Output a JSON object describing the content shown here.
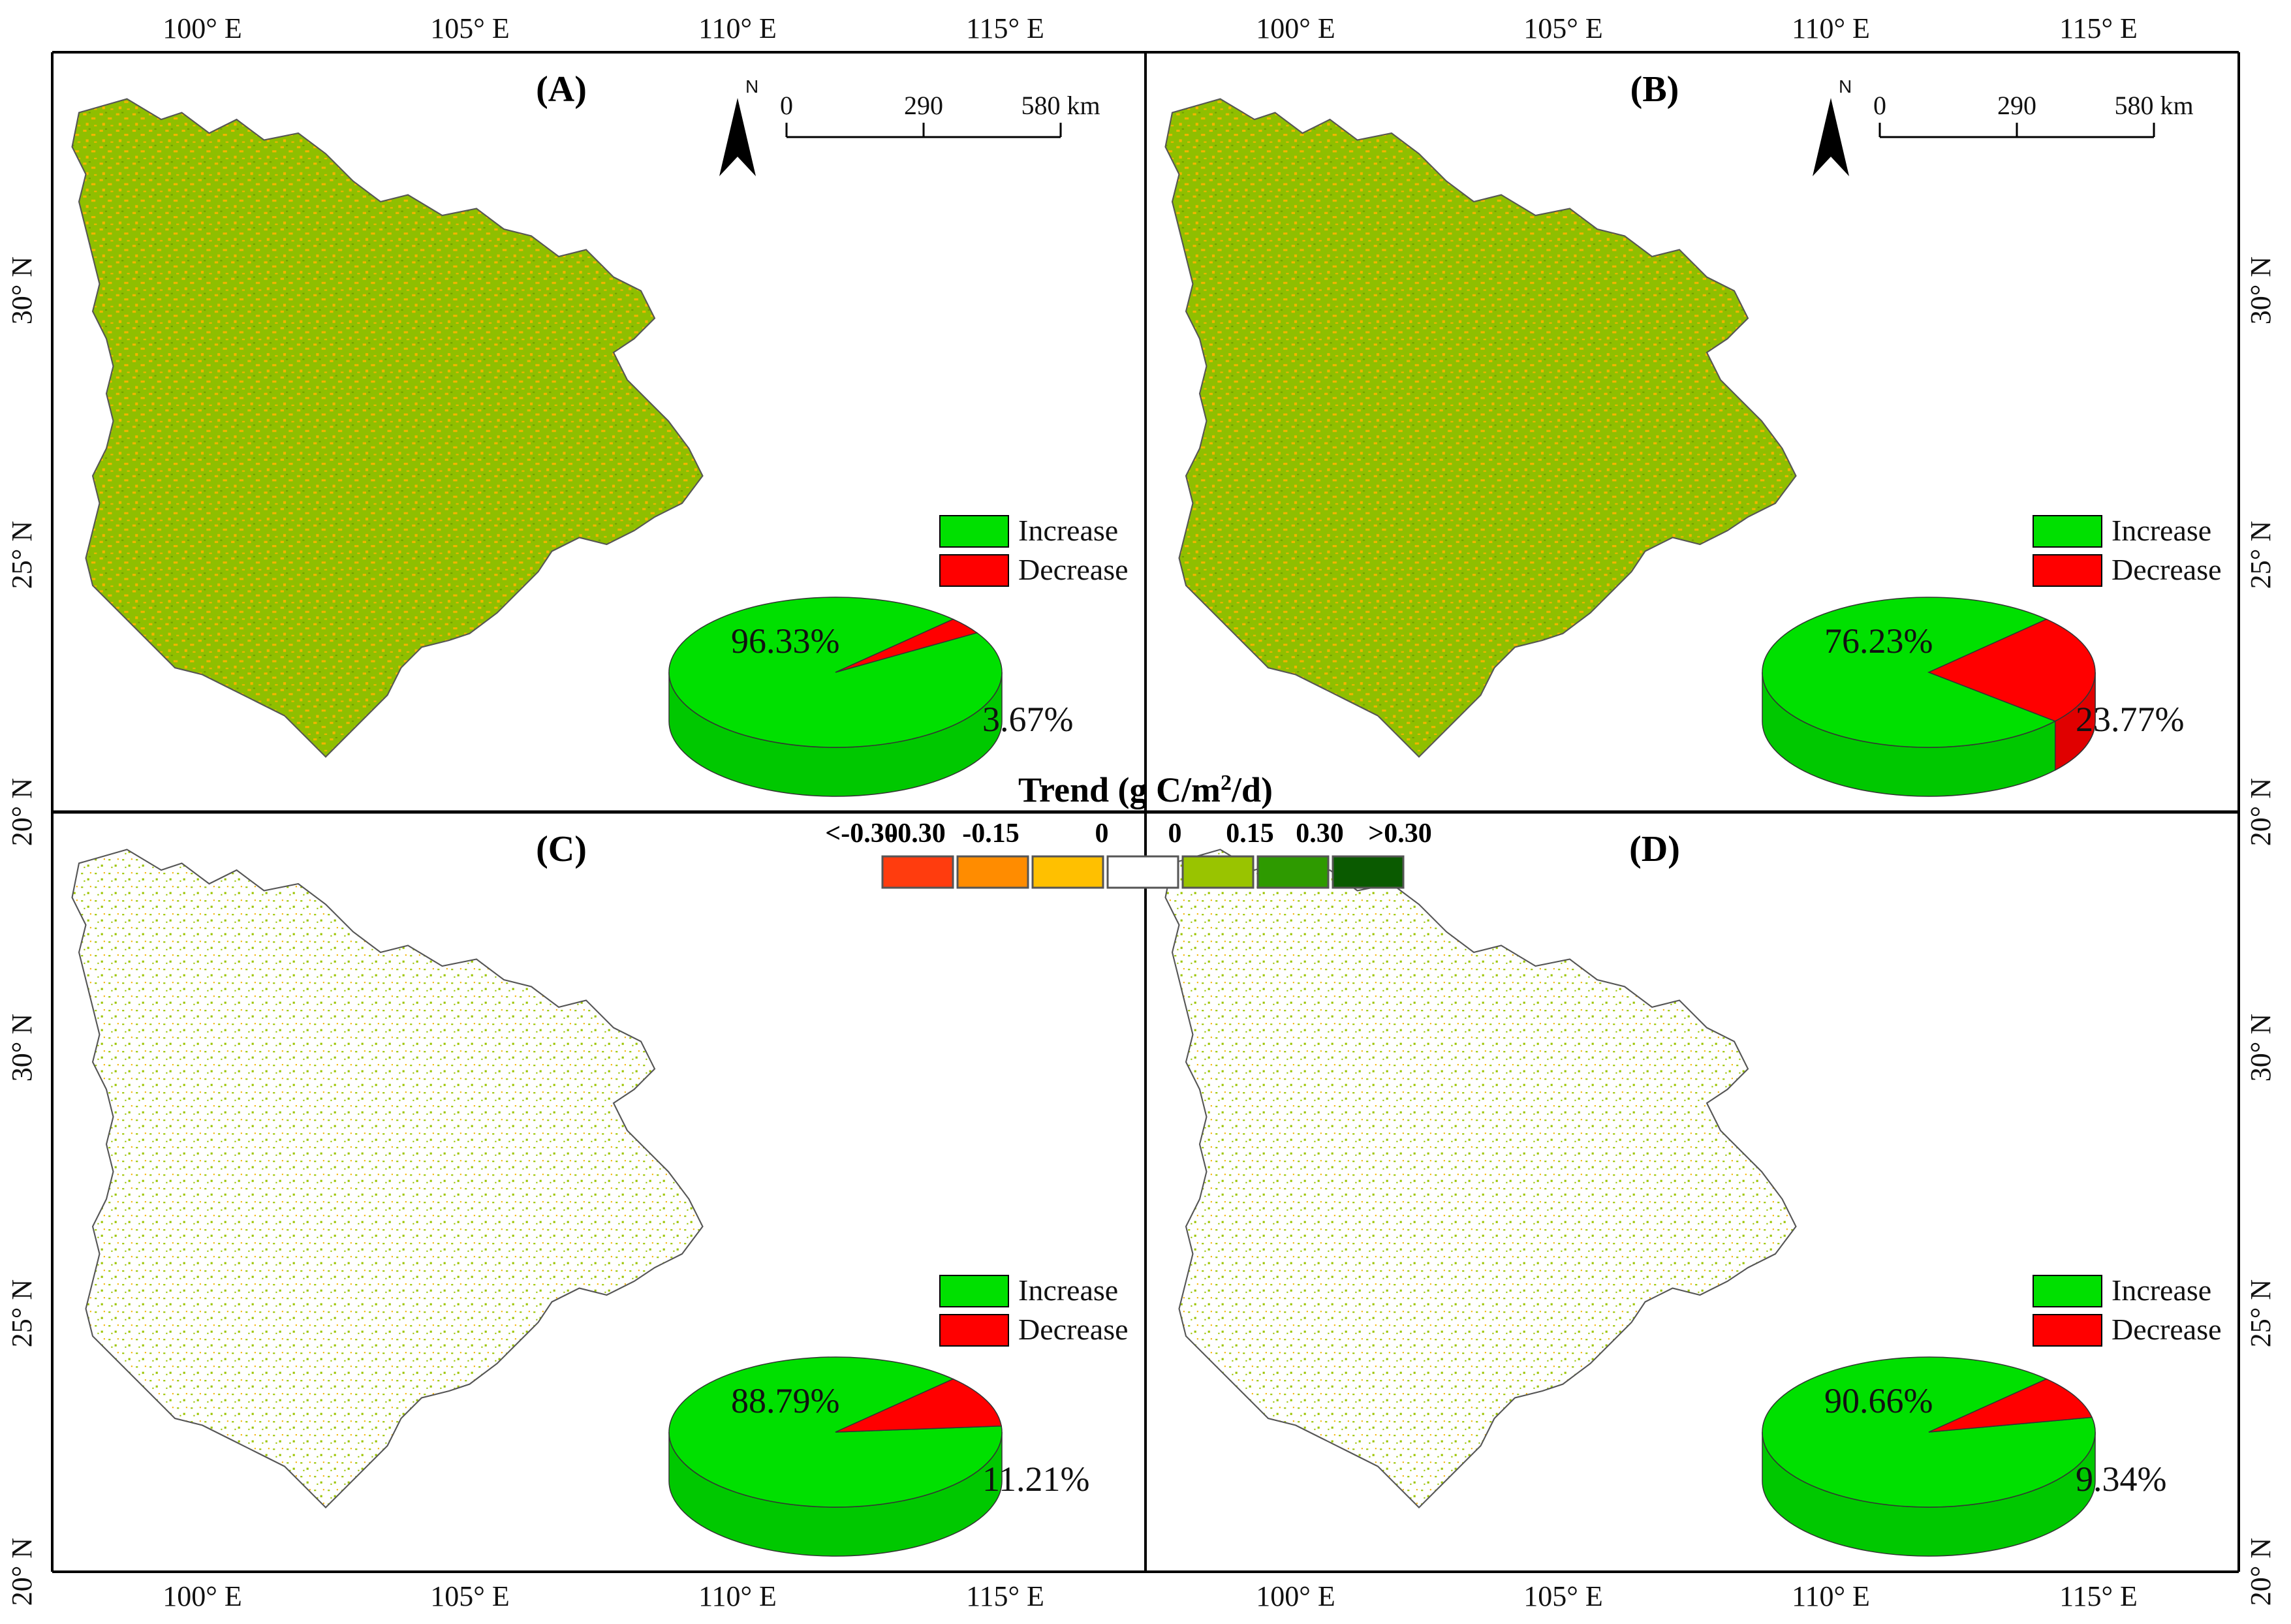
{
  "axes": {
    "lon_ticks": [
      "100° E",
      "105° E",
      "110° E",
      "115° E"
    ],
    "lat_ticks": [
      "20° N",
      "25° N",
      "30° N"
    ]
  },
  "scale_bar": {
    "labels": [
      "0",
      "290",
      "580 km"
    ]
  },
  "north_arrow": {
    "label": "N"
  },
  "legend": {
    "title_prefix": "Trend (g C/m",
    "title_sup": "2",
    "title_suffix": "/d)",
    "class_labels": [
      "<-0.30",
      "-0.30",
      "-0.15",
      "0",
      "0",
      "0.15",
      "0.30",
      ">0.30"
    ],
    "class_colors": [
      "#ff3c0e",
      "#ff8c00",
      "#ffc000",
      "#ffffff",
      "#99c400",
      "#2e9a00",
      "#0a5a00"
    ]
  },
  "pie_legend": {
    "increase_label": "Increase",
    "decrease_label": "Decrease",
    "increase_color": "#00e000",
    "decrease_color": "#ff0000"
  },
  "colors": {
    "map_green": "#8fbf00",
    "map_orange": "#f4b400",
    "border": "#555555"
  },
  "panels": [
    {
      "label": "(A)",
      "increase_pct": "96.33%",
      "decrease_pct": "3.67%",
      "increase_value": 96.33,
      "decrease_value": 3.67
    },
    {
      "label": "(B)",
      "increase_pct": "76.23%",
      "decrease_pct": "23.77%",
      "increase_value": 76.23,
      "decrease_value": 23.77
    },
    {
      "label": "(C)",
      "increase_pct": "88.79%",
      "decrease_pct": "11.21%",
      "increase_value": 88.79,
      "decrease_value": 11.21
    },
    {
      "label": "(D)",
      "increase_pct": "90.66%",
      "decrease_pct": "9.34%",
      "increase_value": 90.66,
      "decrease_value": 9.34
    }
  ]
}
